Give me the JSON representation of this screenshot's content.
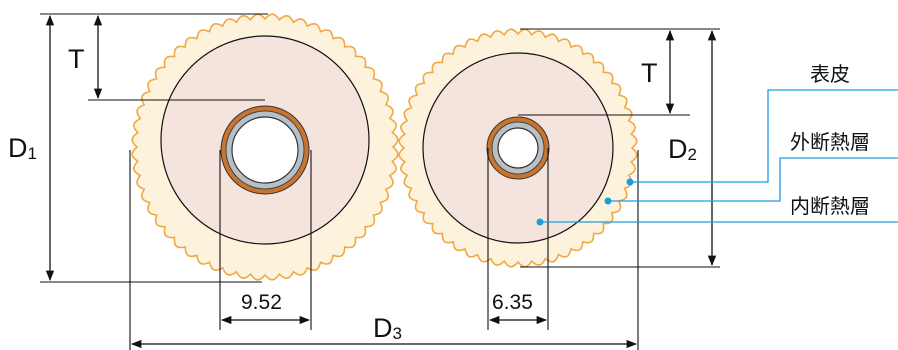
{
  "labels": {
    "T_left": "T",
    "T_right": "T",
    "D1": {
      "main": "D",
      "sub": "1"
    },
    "D2": {
      "main": "D",
      "sub": "2"
    },
    "D3": {
      "main": "D",
      "sub": "3"
    },
    "dim_left": "9.52",
    "dim_right": "6.35",
    "skin": "表皮",
    "outer_insulation": "外断熱層",
    "inner_insulation": "内断熱層"
  },
  "colors": {
    "outer_layer": "#fdf3dc",
    "outer_border": "#f0a842",
    "inner_layer": "#f5e4dd",
    "pipe_copper": "#c9752d",
    "pipe_silver": "#b9bfc6",
    "leader": "#1a9fde",
    "line": "#111111"
  }
}
